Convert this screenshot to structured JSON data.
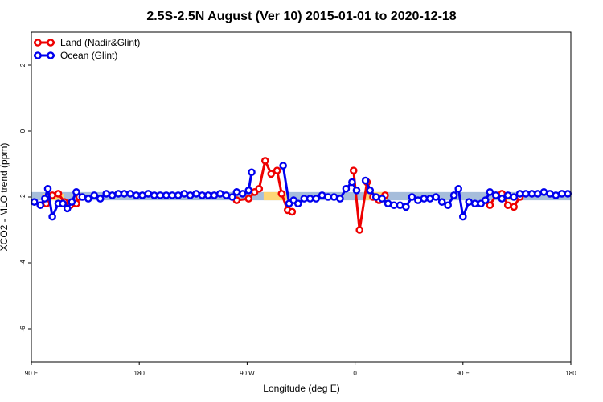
{
  "chart_data": {
    "type": "line",
    "title": "2.5S-2.5N August (Ver 10)   2015-01-01 to 2020-12-18",
    "xlabel": "Longitude (deg E)",
    "ylabel": "XCO2 - MLO trend (ppm)",
    "xlim": [
      90,
      450
    ],
    "ylim": [
      -7,
      3
    ],
    "x_ticks": [
      {
        "value": 90,
        "label": "90 E"
      },
      {
        "value": 162,
        "label": "180"
      },
      {
        "value": 234,
        "label": "90 W"
      },
      {
        "value": 306,
        "label": "0"
      },
      {
        "value": 378,
        "label": "90 E"
      },
      {
        "value": 450,
        "label": "180"
      }
    ],
    "y_ticks": [
      2,
      0,
      -2,
      -4,
      -6
    ],
    "legend_position": "top-left",
    "bands": [
      {
        "color": "#a6bddb",
        "from_x": 90,
        "to_x": 450,
        "y_low": -2.1,
        "y_high": -1.85
      },
      {
        "color": "#fdd676",
        "from_x": 98,
        "to_x": 112,
        "y_low": -2.1,
        "y_high": -1.9
      },
      {
        "color": "#fdd676",
        "from_x": 245,
        "to_x": 262,
        "y_low": -2.1,
        "y_high": -1.85
      },
      {
        "color": "#fdd676",
        "from_x": 312,
        "to_x": 328,
        "y_low": -2.1,
        "y_high": -1.85
      },
      {
        "color": "#fdd676",
        "from_x": 403,
        "to_x": 416,
        "y_low": -2.1,
        "y_high": -1.9
      }
    ],
    "series": [
      {
        "name": "Land (Nadir&Glint)",
        "color": "#ee0000",
        "segments": [
          [
            [
              100,
              -2.2
            ],
            [
              104,
              -1.95
            ],
            [
              108,
              -1.9
            ],
            [
              112,
              -2.15
            ],
            [
              116,
              -2.25
            ],
            [
              120,
              -2.2
            ],
            [
              122,
              -2.0
            ]
          ],
          [
            [
              227,
              -2.1
            ],
            [
              235,
              -2.05
            ],
            [
              239,
              -1.85
            ],
            [
              242,
              -1.75
            ],
            [
              246,
              -0.9
            ],
            [
              250,
              -1.3
            ],
            [
              254,
              -1.2
            ],
            [
              257,
              -1.9
            ],
            [
              261,
              -2.4
            ],
            [
              264,
              -2.45
            ]
          ],
          [
            [
              305,
              -1.2
            ],
            [
              309,
              -3.0
            ],
            [
              314,
              -1.55
            ],
            [
              318,
              -2.0
            ],
            [
              322,
              -2.1
            ],
            [
              326,
              -1.95
            ]
          ],
          [
            [
              396,
              -2.25
            ],
            [
              400,
              -1.95
            ],
            [
              404,
              -1.9
            ],
            [
              408,
              -2.25
            ],
            [
              412,
              -2.3
            ],
            [
              416,
              -2.0
            ]
          ]
        ]
      },
      {
        "name": "Ocean (Glint)",
        "color": "#0000ee",
        "segments": [
          [
            [
              92,
              -2.15
            ],
            [
              96,
              -2.25
            ],
            [
              99,
              -2.05
            ],
            [
              101,
              -1.75
            ],
            [
              104,
              -2.6
            ],
            [
              108,
              -2.2
            ],
            [
              111,
              -2.2
            ],
            [
              114,
              -2.35
            ],
            [
              117,
              -2.15
            ],
            [
              120,
              -1.85
            ],
            [
              124,
              -2.0
            ],
            [
              128,
              -2.05
            ],
            [
              132,
              -1.95
            ],
            [
              136,
              -2.05
            ],
            [
              140,
              -1.9
            ],
            [
              144,
              -1.95
            ],
            [
              148,
              -1.9
            ],
            [
              152,
              -1.9
            ],
            [
              156,
              -1.9
            ],
            [
              160,
              -1.95
            ],
            [
              164,
              -1.95
            ],
            [
              168,
              -1.9
            ],
            [
              172,
              -1.95
            ],
            [
              176,
              -1.95
            ],
            [
              180,
              -1.95
            ],
            [
              184,
              -1.95
            ],
            [
              188,
              -1.95
            ],
            [
              192,
              -1.9
            ],
            [
              196,
              -1.95
            ],
            [
              200,
              -1.9
            ],
            [
              204,
              -1.95
            ],
            [
              208,
              -1.95
            ],
            [
              212,
              -1.95
            ],
            [
              216,
              -1.9
            ],
            [
              220,
              -1.95
            ],
            [
              224,
              -2.0
            ],
            [
              227,
              -1.85
            ],
            [
              231,
              -1.9
            ],
            [
              235,
              -1.8
            ],
            [
              237,
              -1.25
            ]
          ],
          [
            [
              258,
              -1.05
            ],
            [
              262,
              -2.2
            ],
            [
              265,
              -2.1
            ],
            [
              268,
              -2.2
            ],
            [
              272,
              -2.05
            ],
            [
              276,
              -2.05
            ],
            [
              280,
              -2.05
            ],
            [
              284,
              -1.95
            ],
            [
              288,
              -2.0
            ],
            [
              292,
              -2.0
            ],
            [
              296,
              -2.05
            ],
            [
              300,
              -1.75
            ],
            [
              304,
              -1.55
            ],
            [
              307,
              -1.8
            ]
          ],
          [
            [
              313,
              -1.5
            ],
            [
              316,
              -1.8
            ],
            [
              320,
              -2.0
            ],
            [
              324,
              -2.05
            ],
            [
              328,
              -2.2
            ],
            [
              332,
              -2.25
            ],
            [
              336,
              -2.25
            ],
            [
              340,
              -2.3
            ],
            [
              344,
              -2.0
            ],
            [
              348,
              -2.1
            ],
            [
              352,
              -2.05
            ],
            [
              356,
              -2.05
            ],
            [
              360,
              -2.0
            ],
            [
              364,
              -2.15
            ],
            [
              368,
              -2.25
            ],
            [
              372,
              -1.95
            ],
            [
              375,
              -1.75
            ],
            [
              378,
              -2.6
            ],
            [
              382,
              -2.15
            ],
            [
              386,
              -2.2
            ],
            [
              390,
              -2.2
            ],
            [
              393,
              -2.1
            ],
            [
              396,
              -1.85
            ],
            [
              400,
              -1.95
            ],
            [
              404,
              -2.05
            ],
            [
              408,
              -1.95
            ],
            [
              412,
              -2.0
            ],
            [
              416,
              -1.9
            ],
            [
              420,
              -1.9
            ],
            [
              424,
              -1.9
            ],
            [
              428,
              -1.9
            ],
            [
              432,
              -1.85
            ],
            [
              436,
              -1.9
            ],
            [
              440,
              -1.95
            ],
            [
              444,
              -1.9
            ],
            [
              448,
              -1.9
            ]
          ]
        ]
      }
    ]
  }
}
